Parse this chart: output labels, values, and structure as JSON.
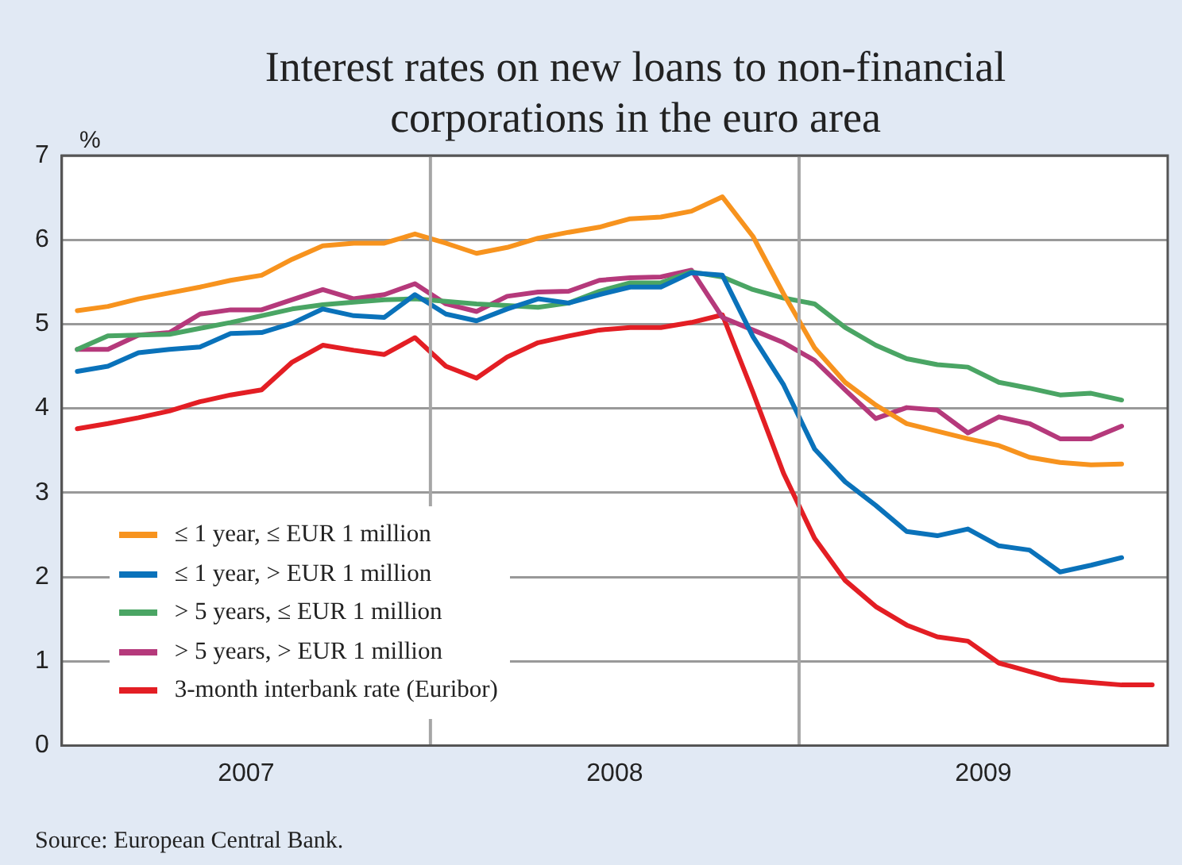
{
  "chart_data": {
    "type": "line",
    "title": "Interest rates on new loans to non-financial corporations in the euro area",
    "ylabel": "%",
    "x": [
      2007.042,
      2007.125,
      2007.208,
      2007.292,
      2007.375,
      2007.458,
      2007.542,
      2007.625,
      2007.708,
      2007.792,
      2007.875,
      2007.958,
      2008.042,
      2008.125,
      2008.208,
      2008.292,
      2008.375,
      2008.458,
      2008.542,
      2008.625,
      2008.708,
      2008.792,
      2008.875,
      2008.958,
      2009.042,
      2009.125,
      2009.208,
      2009.292,
      2009.375,
      2009.458,
      2009.542,
      2009.625,
      2009.708,
      2009.792,
      2009.875,
      2009.958
    ],
    "series": [
      {
        "name": "≤ 1 year, ≤ EUR 1 million",
        "color": "#f7931e",
        "values": [
          5.16,
          5.21,
          5.3,
          5.37,
          5.44,
          5.52,
          5.58,
          5.77,
          5.93,
          5.96,
          5.96,
          6.07,
          5.96,
          5.84,
          5.91,
          6.02,
          6.09,
          6.15,
          6.25,
          6.27,
          6.34,
          6.51,
          6.04,
          5.36,
          4.72,
          4.31,
          4.04,
          3.82,
          3.73,
          3.64,
          3.56,
          3.42,
          3.36,
          3.33,
          3.34,
          null
        ]
      },
      {
        "name": "≤ 1 year, > EUR 1 million",
        "color": "#0a72ba",
        "values": [
          4.44,
          4.5,
          4.66,
          4.7,
          4.73,
          4.89,
          4.9,
          5.01,
          5.18,
          5.1,
          5.08,
          5.35,
          5.12,
          5.04,
          5.18,
          5.3,
          5.25,
          5.35,
          5.44,
          5.44,
          5.61,
          5.58,
          4.85,
          4.28,
          3.52,
          3.13,
          2.85,
          2.54,
          2.49,
          2.57,
          2.37,
          2.32,
          2.06,
          2.14,
          2.23,
          null
        ]
      },
      {
        "name": "> 5 years, ≤ EUR 1 million",
        "color": "#4aa564",
        "values": [
          4.7,
          4.86,
          4.87,
          4.88,
          4.95,
          5.02,
          5.1,
          5.18,
          5.23,
          5.26,
          5.29,
          5.3,
          5.27,
          5.24,
          5.22,
          5.2,
          5.25,
          5.39,
          5.49,
          5.49,
          5.62,
          5.56,
          5.41,
          5.31,
          5.24,
          4.96,
          4.75,
          4.59,
          4.52,
          4.49,
          4.31,
          4.24,
          4.16,
          4.18,
          4.1,
          null
        ]
      },
      {
        "name": "> 5 years, > EUR 1 million",
        "color": "#b5397b",
        "values": [
          4.7,
          4.7,
          4.87,
          4.9,
          5.12,
          5.17,
          5.17,
          5.29,
          5.41,
          5.3,
          5.35,
          5.48,
          5.24,
          5.15,
          5.33,
          5.38,
          5.39,
          5.52,
          5.55,
          5.56,
          5.64,
          5.08,
          4.93,
          4.78,
          4.57,
          4.22,
          3.88,
          4.01,
          3.98,
          3.71,
          3.9,
          3.82,
          3.64,
          3.64,
          3.79,
          null
        ]
      },
      {
        "name": "3-month interbank rate (Euribor)",
        "color": "#e31e24",
        "values": [
          3.76,
          3.82,
          3.89,
          3.97,
          4.08,
          4.16,
          4.22,
          4.55,
          4.75,
          4.69,
          4.64,
          4.84,
          4.5,
          4.36,
          4.61,
          4.78,
          4.86,
          4.93,
          4.96,
          4.96,
          5.02,
          5.11,
          4.19,
          3.23,
          2.46,
          1.96,
          1.65,
          1.43,
          1.29,
          1.24,
          0.98,
          0.88,
          0.78,
          0.75,
          0.72,
          0.72
        ]
      }
    ],
    "xlim": [
      2007,
      2010
    ],
    "xticks": [
      {
        "value": 2007.5,
        "label": "2007"
      },
      {
        "value": 2008.5,
        "label": "2008"
      },
      {
        "value": 2009.5,
        "label": "2009"
      }
    ],
    "ylim": [
      0,
      7
    ],
    "yticks": [
      0,
      1,
      2,
      3,
      4,
      5,
      6,
      7
    ],
    "grid": "y",
    "legend": "bottom left",
    "marker": "none",
    "line_style": "solid",
    "ref_lines": [
      {
        "axis": "x",
        "value": 2008,
        "color": "#a6a6a6"
      },
      {
        "axis": "x",
        "value": 2009,
        "color": "#a6a6a6"
      }
    ],
    "annotations": [
      "Source: European Central Bank."
    ]
  }
}
